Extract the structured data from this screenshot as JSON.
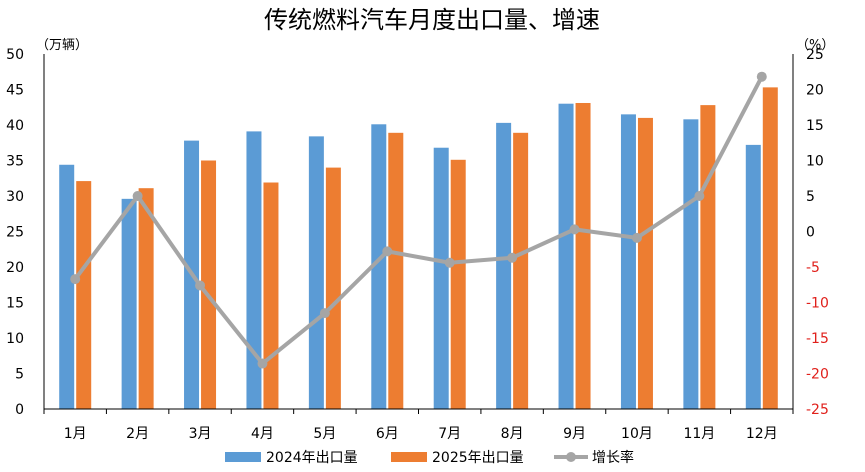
{
  "chart_data": {
    "type": "bar",
    "title": "传统燃料汽车月度出口量、增速",
    "left_unit": "（万辆）",
    "right_unit": "（%）",
    "categories": [
      "1月",
      "2月",
      "3月",
      "4月",
      "5月",
      "6月",
      "7月",
      "8月",
      "9月",
      "10月",
      "11月",
      "12月"
    ],
    "series": [
      {
        "name": "2024年出口量",
        "kind": "bar",
        "axis": "left",
        "color": "#5b9bd5",
        "values": [
          34.4,
          29.6,
          37.8,
          39.1,
          38.4,
          40.1,
          36.8,
          40.3,
          43.0,
          41.5,
          40.8,
          37.2
        ]
      },
      {
        "name": "2025年出口量",
        "kind": "bar",
        "axis": "left",
        "color": "#ed7d31",
        "values": [
          32.1,
          31.1,
          35.0,
          31.9,
          34.0,
          38.9,
          35.1,
          38.9,
          43.1,
          41.0,
          42.8,
          45.3
        ]
      },
      {
        "name": "增长率",
        "kind": "line",
        "axis": "right",
        "color": "#a5a5a5",
        "values": [
          -6.7,
          5.0,
          -7.6,
          -18.6,
          -11.5,
          -2.8,
          -4.4,
          -3.7,
          0.3,
          -0.9,
          5.0,
          21.8
        ]
      }
    ],
    "y_left": {
      "min": 0,
      "max": 50,
      "ticks": [
        0,
        5,
        10,
        15,
        20,
        25,
        30,
        35,
        40,
        45,
        50
      ]
    },
    "y_right": {
      "min": -25,
      "max": 25,
      "ticks": [
        25,
        20,
        15,
        10,
        5,
        0,
        -5,
        -10,
        -15,
        -20,
        -25
      ],
      "negative_color": "#e0201b"
    },
    "legend_position": "bottom",
    "grid": false
  }
}
